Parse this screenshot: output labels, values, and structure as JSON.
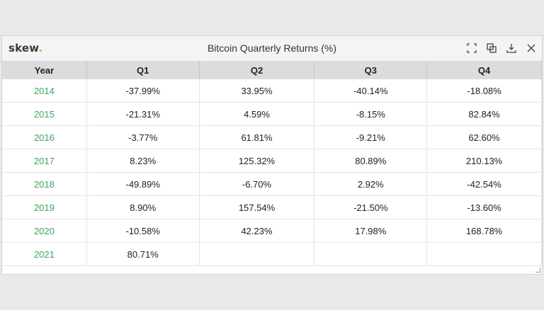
{
  "brand": {
    "name": "skew",
    "dot": "."
  },
  "title": "Bitcoin Quarterly Returns (%)",
  "toolbar": [
    "expand-icon",
    "copy-icon",
    "download-icon",
    "close-icon"
  ],
  "colors": {
    "year_text": "#3aa55a",
    "brand_dot": "#f0a030",
    "header_bg": "#dcdcdc"
  },
  "columns": [
    "Year",
    "Q1",
    "Q2",
    "Q3",
    "Q4"
  ],
  "rows": [
    [
      "2014",
      "-37.99%",
      "33.95%",
      "-40.14%",
      "-18.08%"
    ],
    [
      "2015",
      "-21.31%",
      "4.59%",
      "-8.15%",
      "82.84%"
    ],
    [
      "2016",
      "-3.77%",
      "61.81%",
      "-9.21%",
      "62.60%"
    ],
    [
      "2017",
      "8.23%",
      "125.32%",
      "80.89%",
      "210.13%"
    ],
    [
      "2018",
      "-49.89%",
      "-6.70%",
      "2.92%",
      "-42.54%"
    ],
    [
      "2019",
      "8.90%",
      "157.54%",
      "-21.50%",
      "-13.60%"
    ],
    [
      "2020",
      "-10.58%",
      "42.23%",
      "17.98%",
      "168.78%"
    ],
    [
      "2021",
      "80.71%",
      "",
      "",
      ""
    ]
  ]
}
